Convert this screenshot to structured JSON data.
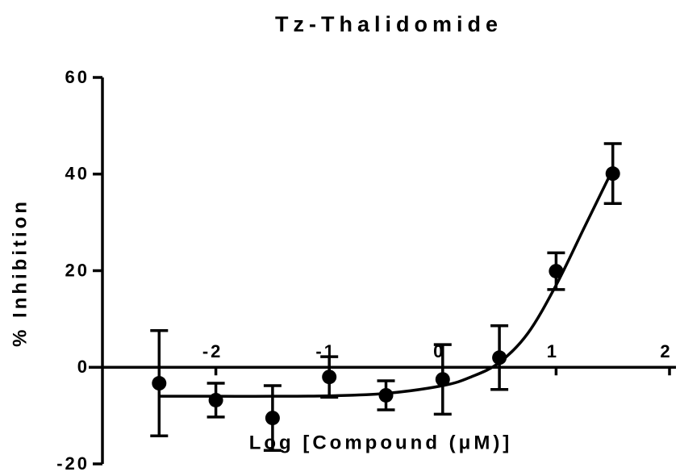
{
  "chart_data": {
    "type": "scatter",
    "title": "Tz-Thalidomide",
    "xlabel": "Log [Compound (μM)]",
    "ylabel": "% Inhibition",
    "x": [
      -2.5,
      -2.0,
      -1.5,
      -1.0,
      -0.5,
      0.0,
      0.5,
      1.0,
      1.5
    ],
    "values": [
      -3.3,
      -6.8,
      -10.5,
      -2.0,
      -5.8,
      -2.5,
      2.0,
      19.9,
      40.1
    ],
    "errors": [
      10.9,
      3.5,
      6.7,
      4.2,
      3.0,
      7.2,
      6.6,
      3.8,
      6.2
    ],
    "fit": {
      "x": [
        -2.5,
        -2.0,
        -1.5,
        -1.0,
        -0.5,
        0.0,
        0.25,
        0.5,
        0.75,
        1.0,
        1.25,
        1.5
      ],
      "y": [
        -6,
        -6,
        -6,
        -5.9,
        -5.4,
        -3.8,
        -2,
        1,
        7,
        17,
        29,
        41
      ]
    },
    "color": "#000000",
    "xlim": [
      -3,
      2
    ],
    "ylim": [
      -20,
      60
    ],
    "xticks": [
      -2,
      -1,
      0,
      1,
      2
    ],
    "yticks": [
      -20,
      0,
      20,
      40,
      60
    ]
  }
}
